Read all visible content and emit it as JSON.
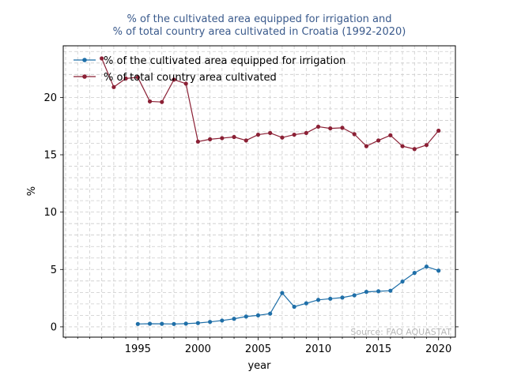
{
  "chart_data": {
    "type": "line",
    "title_lines": [
      "% of the cultivated area equipped for irrigation and",
      "% of total country area cultivated in Croatia (1992-2020)"
    ],
    "xlabel": "year",
    "ylabel": "%",
    "xlim": [
      1988.8,
      2021.4
    ],
    "ylim": [
      -0.9,
      24.5
    ],
    "x_ticks": [
      1995,
      2000,
      2005,
      2010,
      2015,
      2020
    ],
    "x_tick_labels": [
      "1995",
      "2000",
      "2005",
      "2010",
      "2015",
      "2020"
    ],
    "y_ticks": [
      0,
      5,
      10,
      15,
      20
    ],
    "y_tick_labels": [
      "0",
      "5",
      "10",
      "15",
      "20"
    ],
    "grid": true,
    "legend_position": "top-left",
    "source_note": "Source: FAO AQUASTAT",
    "series": [
      {
        "name": "% of the cultivated area equipped for irrigation",
        "color": "#1f6fa8",
        "x": [
          1995,
          1996,
          1997,
          1998,
          1999,
          2000,
          2001,
          2002,
          2003,
          2004,
          2005,
          2006,
          2007,
          2008,
          2009,
          2010,
          2011,
          2012,
          2013,
          2014,
          2015,
          2016,
          2017,
          2018,
          2019,
          2020
        ],
        "values": [
          0.25,
          0.27,
          0.26,
          0.25,
          0.28,
          0.33,
          0.43,
          0.55,
          0.7,
          0.9,
          1.0,
          1.15,
          2.95,
          1.75,
          2.05,
          2.35,
          2.45,
          2.55,
          2.75,
          3.05,
          3.1,
          3.15,
          3.95,
          4.7,
          5.25,
          4.9
        ]
      },
      {
        "name": "% of total country area cultivated",
        "color": "#8b2035",
        "x": [
          1992,
          1993,
          1994,
          1995,
          1996,
          1997,
          1998,
          1999,
          2000,
          2001,
          2002,
          2003,
          2004,
          2005,
          2006,
          2007,
          2008,
          2009,
          2010,
          2011,
          2012,
          2013,
          2014,
          2015,
          2016,
          2017,
          2018,
          2019,
          2020
        ],
        "values": [
          23.4,
          20.9,
          21.65,
          21.75,
          19.65,
          19.6,
          21.55,
          21.2,
          16.15,
          16.35,
          16.45,
          16.55,
          16.25,
          16.75,
          16.9,
          16.5,
          16.75,
          16.9,
          17.45,
          17.3,
          17.35,
          16.8,
          15.75,
          16.25,
          16.7,
          15.75,
          15.5,
          15.85,
          17.1
        ]
      }
    ]
  }
}
